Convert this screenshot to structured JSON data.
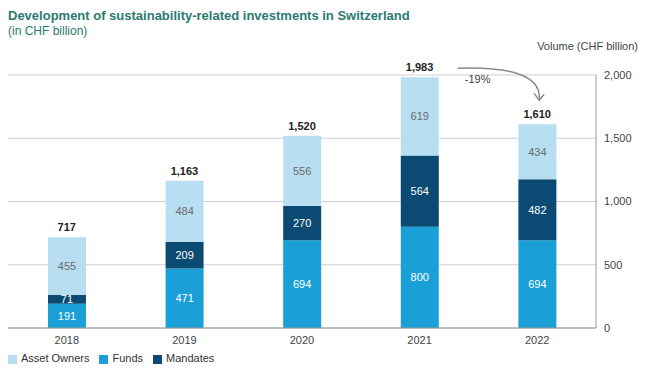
{
  "chart_data": {
    "type": "bar",
    "title": "Development of sustainability-related investments in Switzerland",
    "subtitle": "(in CHF billion)",
    "y_label": "Volume (CHF billion)",
    "categories": [
      "2018",
      "2019",
      "2020",
      "2021",
      "2022"
    ],
    "series": [
      {
        "name": "Funds",
        "color": "#1a9fd6",
        "values": [
          191,
          471,
          694,
          800,
          694
        ]
      },
      {
        "name": "Mandates",
        "color": "#0b4a72",
        "values": [
          71,
          209,
          270,
          564,
          482
        ]
      },
      {
        "name": "Asset Owners",
        "color": "#b7dff1",
        "values": [
          455,
          484,
          556,
          619,
          434
        ]
      }
    ],
    "totals": [
      717,
      1163,
      1520,
      1983,
      1610
    ],
    "total_labels": [
      "717",
      "1,163",
      "1,520",
      "1,983",
      "1,610"
    ],
    "annotations": [
      {
        "text": "-19%",
        "from": "2021",
        "to": "2022"
      }
    ],
    "ylim": [
      0,
      2000
    ],
    "yticks": [
      0,
      500,
      {
        "value": 1000,
        "label": "1,000"
      },
      {
        "value": 1500,
        "label": "1,500"
      },
      {
        "value": 2000,
        "label": "2,000"
      }
    ],
    "grid": true,
    "stacked": true,
    "data_labels": true,
    "legend": "bottom-left"
  }
}
